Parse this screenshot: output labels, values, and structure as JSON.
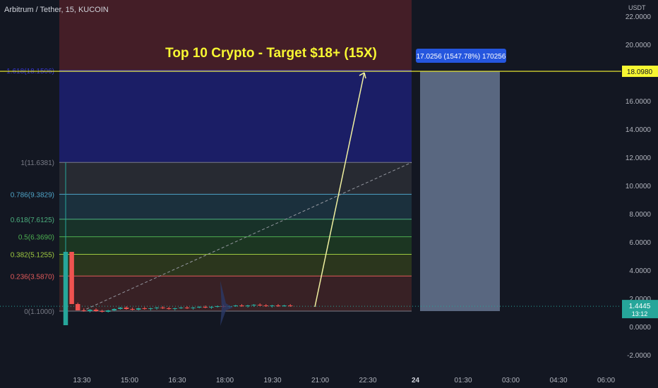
{
  "header": {
    "symbol_label": "Arbitrum / Tether, 15, KUCOIN",
    "currency": "USDT"
  },
  "annotation": {
    "headline": "Top 10 Crypto - Target $18+ (15X)",
    "measure_label": "17.0256 (1547.78%) 170256"
  },
  "colors": {
    "background": "#131722",
    "bull": "#26a69a",
    "bear": "#ef5350",
    "target_line": "#f7f732",
    "headline": "#f7f732"
  },
  "price_axis": {
    "ticks": [
      "22.0000",
      "20.0000",
      "18.0000",
      "16.0000",
      "14.0000",
      "12.0000",
      "10.0000",
      "8.0000",
      "6.0000",
      "4.0000",
      "2.0000",
      "0.0000",
      "-2.0000"
    ],
    "target_label": "18.0980",
    "last_price_label": "1.4445",
    "countdown_label": "13:12"
  },
  "time_axis": {
    "ticks": [
      "13:30",
      "15:00",
      "16:30",
      "18:00",
      "19:30",
      "21:00",
      "22:30",
      "24",
      "01:30",
      "03:00",
      "04:30",
      "06:00"
    ]
  },
  "fib_levels": [
    {
      "level": 1.618,
      "price": 18.1506,
      "label": "1.618(18.1506)",
      "color": "#3a3acd",
      "fill": "#1d1f6e"
    },
    {
      "level": 1,
      "price": 11.6381,
      "label": "1(11.6381)",
      "color": "#787b86",
      "fill": "#2a2c34"
    },
    {
      "level": 0.786,
      "price": 9.3829,
      "label": "0.786(9.3829)",
      "color": "#4fa3c7",
      "fill": "#1d3340"
    },
    {
      "level": 0.618,
      "price": 7.6125,
      "label": "0.618(7.6125)",
      "color": "#4caf7e",
      "fill": "#19352a"
    },
    {
      "level": 0.5,
      "price": 6.369,
      "label": "0.5(6.3690)",
      "color": "#4caf50",
      "fill": "#1e3a22"
    },
    {
      "level": 0.382,
      "price": 5.1255,
      "label": "0.382(5.1255)",
      "color": "#9ec940",
      "fill": "#2f3a1d"
    },
    {
      "level": 0.236,
      "price": 3.587,
      "label": "0.236(3.5870)",
      "color": "#e05a5a",
      "fill": "#3d2226"
    },
    {
      "level": 0,
      "price": 1.1,
      "label": "0(1.1000)",
      "color": "#787b86",
      "fill": "#3d2226"
    }
  ],
  "chart_data": {
    "type": "candlestick",
    "title": "Arbitrum / Tether, 15, KUCOIN",
    "ylim": [
      -3,
      23
    ],
    "x_ticks": [
      "13:30",
      "15:00",
      "16:30",
      "18:00",
      "19:30",
      "21:00",
      "22:30",
      "24",
      "01:30",
      "03:00",
      "04:30",
      "06:00"
    ],
    "candles": [
      {
        "open": 0.1,
        "high": 5.3,
        "low": 0.1,
        "close": 5.3
      },
      {
        "open": 5.3,
        "high": 5.3,
        "low": 1.6,
        "close": 1.6
      },
      {
        "open": 1.6,
        "high": 1.7,
        "low": 1.15,
        "close": 1.15
      },
      {
        "open": 1.15,
        "high": 1.3,
        "low": 1.05,
        "close": 1.1
      },
      {
        "open": 1.1,
        "high": 1.25,
        "low": 1.0,
        "close": 1.2
      },
      {
        "open": 1.2,
        "high": 1.3,
        "low": 1.05,
        "close": 1.1
      },
      {
        "open": 1.1,
        "high": 1.2,
        "low": 1.0,
        "close": 1.05
      },
      {
        "open": 1.05,
        "high": 1.2,
        "low": 1.0,
        "close": 1.15
      },
      {
        "open": 1.15,
        "high": 1.3,
        "low": 1.1,
        "close": 1.25
      },
      {
        "open": 1.25,
        "high": 1.4,
        "low": 1.2,
        "close": 1.35
      },
      {
        "open": 1.35,
        "high": 1.45,
        "low": 1.2,
        "close": 1.25
      },
      {
        "open": 1.25,
        "high": 1.35,
        "low": 1.15,
        "close": 1.2
      },
      {
        "open": 1.2,
        "high": 1.35,
        "low": 1.15,
        "close": 1.3
      },
      {
        "open": 1.3,
        "high": 1.4,
        "low": 1.2,
        "close": 1.25
      },
      {
        "open": 1.25,
        "high": 1.35,
        "low": 1.15,
        "close": 1.3
      },
      {
        "open": 1.3,
        "high": 1.4,
        "low": 1.2,
        "close": 1.35
      },
      {
        "open": 1.35,
        "high": 1.45,
        "low": 1.25,
        "close": 1.3
      },
      {
        "open": 1.3,
        "high": 1.4,
        "low": 1.2,
        "close": 1.25
      },
      {
        "open": 1.25,
        "high": 1.35,
        "low": 1.15,
        "close": 1.3
      },
      {
        "open": 1.3,
        "high": 1.4,
        "low": 1.25,
        "close": 1.35
      },
      {
        "open": 1.35,
        "high": 1.45,
        "low": 1.25,
        "close": 1.3
      },
      {
        "open": 1.3,
        "high": 1.4,
        "low": 1.2,
        "close": 1.35
      },
      {
        "open": 1.35,
        "high": 1.45,
        "low": 1.3,
        "close": 1.4
      },
      {
        "open": 1.4,
        "high": 1.5,
        "low": 1.3,
        "close": 1.35
      },
      {
        "open": 1.35,
        "high": 1.45,
        "low": 1.25,
        "close": 1.4
      },
      {
        "open": 1.4,
        "high": 1.5,
        "low": 1.35,
        "close": 1.45
      },
      {
        "open": 1.45,
        "high": 1.55,
        "low": 1.35,
        "close": 1.4
      },
      {
        "open": 1.4,
        "high": 1.5,
        "low": 1.3,
        "close": 1.45
      },
      {
        "open": 1.45,
        "high": 1.55,
        "low": 1.4,
        "close": 1.5
      },
      {
        "open": 1.5,
        "high": 1.6,
        "low": 1.4,
        "close": 1.45
      },
      {
        "open": 1.45,
        "high": 1.55,
        "low": 1.35,
        "close": 1.5
      },
      {
        "open": 1.5,
        "high": 1.6,
        "low": 1.4,
        "close": 1.55
      },
      {
        "open": 1.55,
        "high": 1.65,
        "low": 1.45,
        "close": 1.5
      },
      {
        "open": 1.5,
        "high": 1.6,
        "low": 1.4,
        "close": 1.45
      },
      {
        "open": 1.45,
        "high": 1.55,
        "low": 1.35,
        "close": 1.5
      },
      {
        "open": 1.5,
        "high": 1.6,
        "low": 1.4,
        "close": 1.45
      },
      {
        "open": 1.45,
        "high": 1.55,
        "low": 1.4,
        "close": 1.5
      },
      {
        "open": 1.5,
        "high": 1.6,
        "low": 1.4,
        "close": 1.45
      }
    ],
    "target_price": 18.098,
    "last_price": 1.4445,
    "measure": {
      "change": 17.0256,
      "percent": 1547.78
    }
  }
}
